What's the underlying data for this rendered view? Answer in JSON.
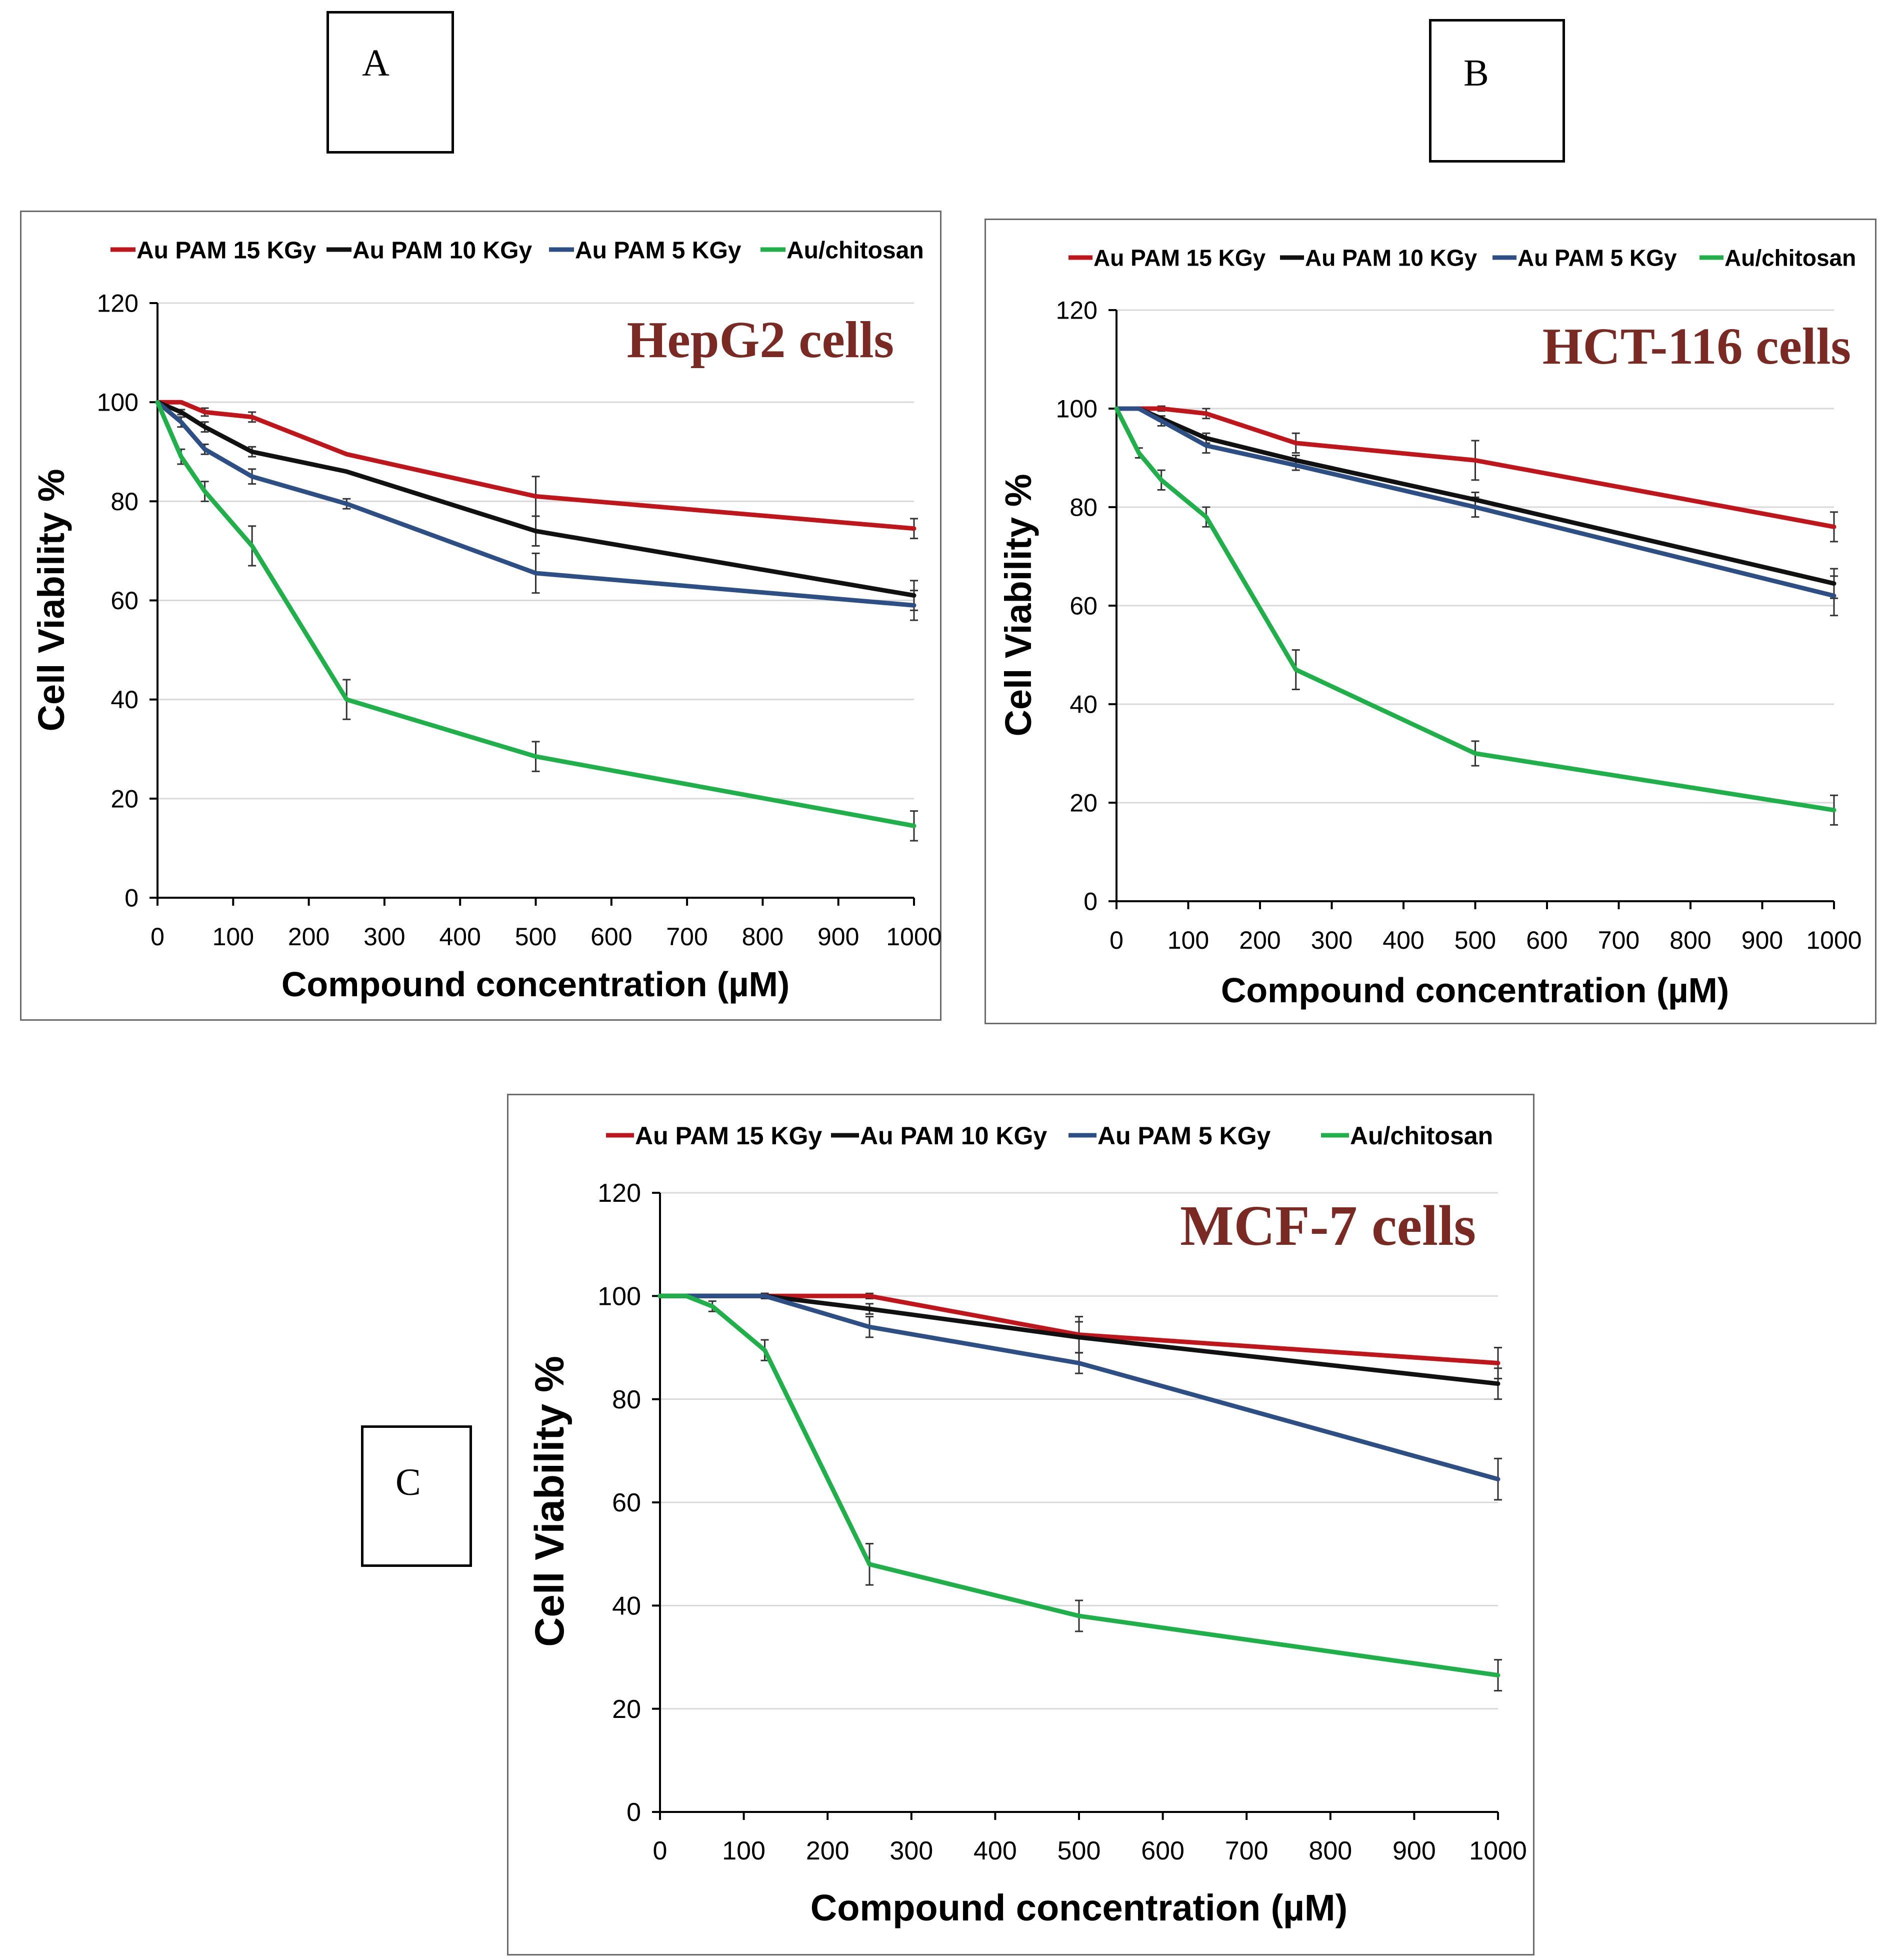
{
  "panel_labels": [
    "A",
    "B",
    "C"
  ],
  "chart_data": [
    {
      "type": "line",
      "panel": "A",
      "title": "HepG2 cells",
      "xlabel": "Compound concentration (µM)",
      "ylabel": "Cell Viability %",
      "xlim": [
        0,
        1000
      ],
      "ylim": [
        0,
        120
      ],
      "xticks": [
        0,
        100,
        200,
        300,
        400,
        500,
        600,
        700,
        800,
        900,
        1000
      ],
      "yticks": [
        0,
        20,
        40,
        60,
        80,
        100,
        120
      ],
      "grid": true,
      "legend": "top",
      "series": [
        {
          "name": "Au PAM 15 KGy",
          "color": "#c0161b",
          "x": [
            0,
            31.25,
            62.5,
            125,
            250,
            500,
            1000
          ],
          "values": [
            100,
            100,
            98,
            97,
            89.5,
            81,
            74.5
          ],
          "errors": [
            0,
            0,
            0.8,
            1,
            0,
            4,
            2
          ]
        },
        {
          "name": "Au PAM 10 KGy",
          "color": "#111111",
          "x": [
            0,
            31.25,
            62.5,
            125,
            250,
            500,
            1000
          ],
          "values": [
            100,
            98,
            95,
            90,
            86,
            74,
            61
          ],
          "errors": [
            0,
            0.5,
            1,
            1,
            0,
            3,
            3
          ]
        },
        {
          "name": "Au PAM 5 KGy",
          "color": "#2d4f86",
          "x": [
            0,
            31.25,
            62.5,
            125,
            250,
            500,
            1000
          ],
          "values": [
            100,
            96,
            90.5,
            85,
            79.5,
            65.5,
            59
          ],
          "errors": [
            0,
            1,
            1,
            1.5,
            1,
            4,
            3
          ]
        },
        {
          "name": "Au/chitosan",
          "color": "#20b04a",
          "x": [
            0,
            31.25,
            62.5,
            125,
            250,
            500,
            1000
          ],
          "values": [
            100,
            89,
            82,
            71,
            40,
            28.5,
            14.5
          ],
          "errors": [
            0,
            1.5,
            2,
            4,
            4,
            3,
            3
          ]
        }
      ]
    },
    {
      "type": "line",
      "panel": "B",
      "title": "HCT-116 cells",
      "xlabel": "Compound concentration (µM)",
      "ylabel": "Cell Viability %",
      "xlim": [
        0,
        1000
      ],
      "ylim": [
        0,
        120
      ],
      "xticks": [
        0,
        100,
        200,
        300,
        400,
        500,
        600,
        700,
        800,
        900,
        1000
      ],
      "yticks": [
        0,
        20,
        40,
        60,
        80,
        100,
        120
      ],
      "grid": true,
      "legend": "top",
      "series": [
        {
          "name": "Au PAM 15 KGy",
          "color": "#c0161b",
          "x": [
            0,
            31.25,
            62.5,
            125,
            250,
            500,
            1000
          ],
          "values": [
            100,
            100,
            100,
            99,
            93,
            89.5,
            76
          ],
          "errors": [
            0,
            0,
            0.5,
            1,
            2,
            4,
            3
          ]
        },
        {
          "name": "Au PAM 10 KGy",
          "color": "#111111",
          "x": [
            0,
            31.25,
            62.5,
            125,
            250,
            500,
            1000
          ],
          "values": [
            100,
            100,
            98,
            94,
            89.5,
            81.5,
            64.5
          ],
          "errors": [
            0,
            0,
            0.5,
            1,
            1,
            1.5,
            3
          ]
        },
        {
          "name": "Au PAM 5 KGy",
          "color": "#2d4f86",
          "x": [
            0,
            31.25,
            62.5,
            125,
            250,
            500,
            1000
          ],
          "values": [
            100,
            100,
            97.5,
            92.5,
            88.5,
            80,
            62
          ],
          "errors": [
            0,
            0,
            1,
            1.5,
            1,
            2,
            4
          ]
        },
        {
          "name": "Au/chitosan",
          "color": "#20b04a",
          "x": [
            0,
            31.25,
            62.5,
            125,
            250,
            500,
            1000
          ],
          "values": [
            100,
            91,
            85.5,
            78,
            47,
            30,
            18.5
          ],
          "errors": [
            0,
            1,
            2,
            2,
            4,
            2.5,
            3
          ]
        }
      ]
    },
    {
      "type": "line",
      "panel": "C",
      "title": "MCF-7 cells",
      "xlabel": "Compound concentration (µM)",
      "ylabel": "Cell Viability %",
      "xlim": [
        0,
        1000
      ],
      "ylim": [
        0,
        120
      ],
      "xticks": [
        0,
        100,
        200,
        300,
        400,
        500,
        600,
        700,
        800,
        900,
        1000
      ],
      "yticks": [
        0,
        20,
        40,
        60,
        80,
        100,
        120
      ],
      "grid": true,
      "legend": "top",
      "series": [
        {
          "name": "Au PAM 15 KGy",
          "color": "#c0161b",
          "x": [
            0,
            31.25,
            62.5,
            125,
            250,
            500,
            1000
          ],
          "values": [
            100,
            100,
            100,
            100,
            100,
            92.5,
            87
          ],
          "errors": [
            0,
            0,
            0,
            0.5,
            0.5,
            3.5,
            3
          ]
        },
        {
          "name": "Au PAM 10 KGy",
          "color": "#111111",
          "x": [
            0,
            31.25,
            62.5,
            125,
            250,
            500,
            1000
          ],
          "values": [
            100,
            100,
            100,
            100,
            97.5,
            92,
            83
          ],
          "errors": [
            0,
            0,
            0,
            0.5,
            1,
            3,
            3
          ]
        },
        {
          "name": "Au PAM 5 KGy",
          "color": "#2d4f86",
          "x": [
            0,
            31.25,
            62.5,
            125,
            250,
            500,
            1000
          ],
          "values": [
            100,
            100,
            100,
            100,
            94,
            87,
            64.5
          ],
          "errors": [
            0,
            0,
            0,
            0.5,
            2,
            2,
            4
          ]
        },
        {
          "name": "Au/chitosan",
          "color": "#20b04a",
          "x": [
            0,
            31.25,
            62.5,
            125,
            250,
            500,
            1000
          ],
          "values": [
            100,
            100,
            98,
            89.5,
            48,
            38,
            26.5
          ],
          "errors": [
            0,
            0,
            1,
            2,
            4,
            3,
            3
          ]
        }
      ]
    }
  ]
}
